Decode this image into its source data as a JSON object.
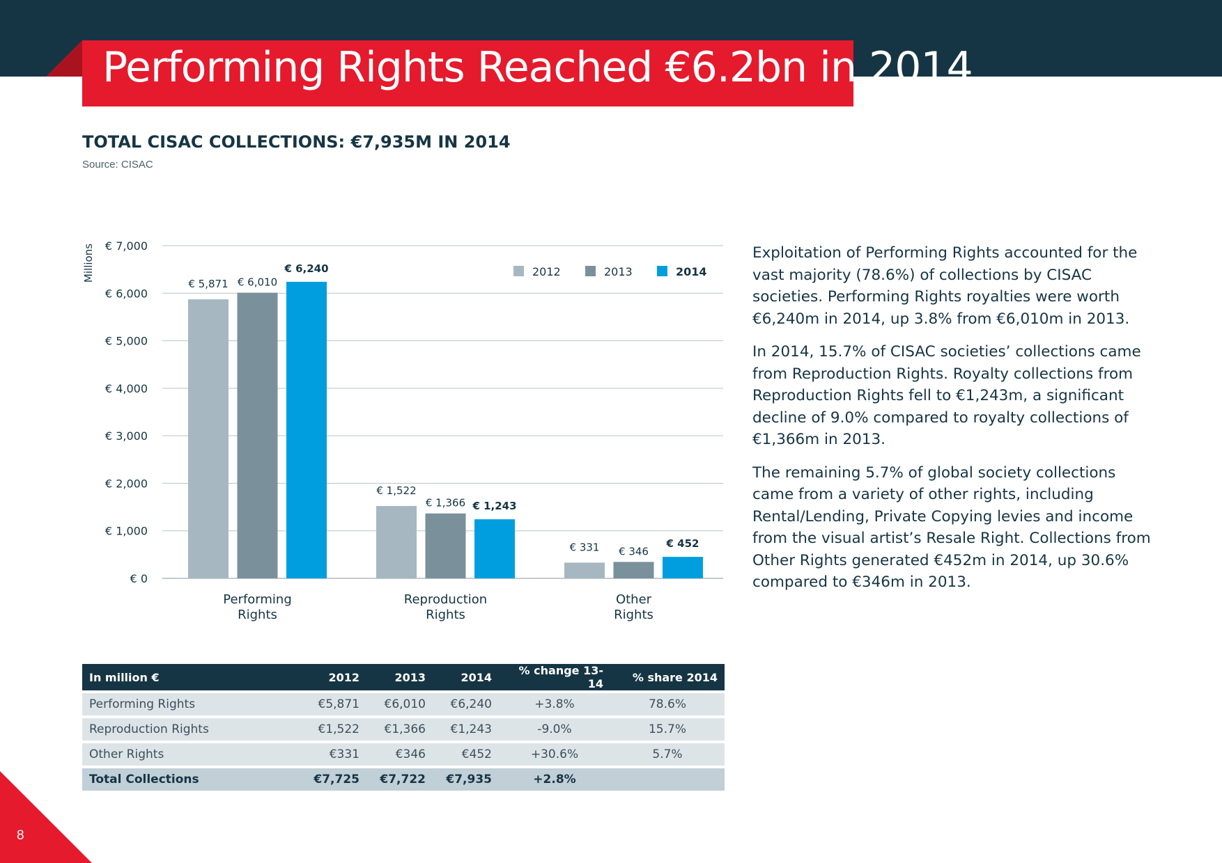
{
  "page": {
    "title": "Performing Rights Reached €6.2bn in 2014",
    "chart_heading": "TOTAL CISAC COLLECTIONS: €7,935M IN 2014",
    "source": "Source: CISAC",
    "page_number": "8"
  },
  "colors": {
    "navy": "#163544",
    "red": "#e51a2c",
    "series_2012": "#a6b7c1",
    "series_2013": "#7a919c",
    "series_2014": "#009edf"
  },
  "chart_data": {
    "type": "bar",
    "title": "TOTAL CISAC COLLECTIONS: €7,935M IN 2014",
    "ylabel": "Millions",
    "xlabel": "",
    "ylim": [
      0,
      7000
    ],
    "y_ticks": [
      0,
      1000,
      2000,
      3000,
      4000,
      5000,
      6000,
      7000
    ],
    "y_tick_labels": [
      "€ 0",
      "€ 1,000",
      "€ 2,000",
      "€ 3,000",
      "€ 4,000",
      "€ 5,000",
      "€ 6,000",
      "€ 7,000"
    ],
    "grid": true,
    "legend_position": "top-right",
    "categories": [
      [
        "Performing",
        "Rights"
      ],
      [
        "Reproduction",
        "Rights"
      ],
      [
        "Other",
        "Rights"
      ]
    ],
    "series": [
      {
        "name": "2012",
        "values": [
          5871,
          1522,
          331
        ],
        "labels": [
          "€ 5,871",
          "€ 1,522",
          "€ 331"
        ],
        "bold": false
      },
      {
        "name": "2013",
        "values": [
          6010,
          1366,
          346
        ],
        "labels": [
          "€ 6,010",
          "€ 1,366",
          "€ 346"
        ],
        "bold": false
      },
      {
        "name": "2014",
        "values": [
          6240,
          1243,
          452
        ],
        "labels": [
          "€ 6,240",
          "€ 1,243",
          "€ 452"
        ],
        "bold": true
      }
    ]
  },
  "body": {
    "paragraphs": [
      "Exploitation of Performing Rights accounted for the vast majority (78.6%) of collections by CISAC societies. Performing Rights royalties were worth €6,240m in 2014, up 3.8% from €6,010m in 2013.",
      "In 2014, 15.7% of CISAC societies’ collections came from Reproduction Rights. Royalty collections from Reproduction Rights fell to €1,243m, a significant decline of 9.0% compared to royalty collections of €1,366m in 2013.",
      "The remaining 5.7% of global society collections came from a variety of other rights, including Rental/Lending, Private Copying levies and income from the visual artist’s Resale Right. Collections from Other Rights generated €452m in 2014, up 30.6% compared to €346m in 2013."
    ]
  },
  "table": {
    "headers": [
      "In million €",
      "2012",
      "2013",
      "2014",
      "% change 13-14",
      "% share 2014"
    ],
    "rows": [
      [
        "Performing Rights",
        "€5,871",
        "€6,010",
        "€6,240",
        "+3.8%",
        "78.6%"
      ],
      [
        "Reproduction Rights",
        "€1,522",
        "€1,366",
        "€1,243",
        "-9.0%",
        "15.7%"
      ],
      [
        "Other Rights",
        "€331",
        "€346",
        "€452",
        "+30.6%",
        "5.7%"
      ]
    ],
    "total": [
      "Total Collections",
      "€7,725",
      "€7,722",
      "€7,935",
      "+2.8%",
      ""
    ]
  }
}
